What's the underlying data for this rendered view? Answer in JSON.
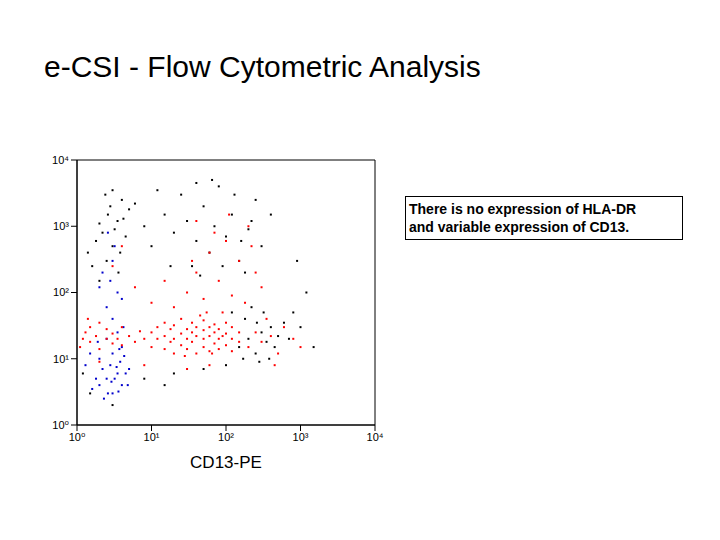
{
  "chart_data": {
    "type": "scatter",
    "title": "e-CSI - Flow Cytometric Analysis",
    "xlabel": "CD13-PE",
    "annotation": "There is no expression of HLA-DR and variable expression of CD13.",
    "log": true,
    "grid": false,
    "marker": "dot",
    "xlim": [
      1,
      10000
    ],
    "ylim": [
      1,
      10000
    ],
    "xticks": [
      {
        "value": 1,
        "label": "10⁰"
      },
      {
        "value": 10,
        "label": "10¹"
      },
      {
        "value": 100,
        "label": "10²"
      },
      {
        "value": 1000,
        "label": "10³"
      },
      {
        "value": 10000,
        "label": "10⁴"
      }
    ],
    "yticks": [
      {
        "value": 1,
        "label": "10⁰"
      },
      {
        "value": 10,
        "label": "10¹"
      },
      {
        "value": 100,
        "label": "10²"
      },
      {
        "value": 1000,
        "label": "10³"
      },
      {
        "value": 10000,
        "label": "10⁴"
      }
    ],
    "series": [
      {
        "color": "#000000",
        "points": [
          [
            2,
            150
          ],
          [
            2.5,
            300
          ],
          [
            3,
            500
          ],
          [
            2.2,
            800
          ],
          [
            3.5,
            1200
          ],
          [
            2.8,
            2000
          ],
          [
            4,
            2500
          ],
          [
            1.8,
            600
          ],
          [
            3.2,
            900
          ],
          [
            2.6,
            1500
          ],
          [
            4.5,
            700
          ],
          [
            1.6,
            250
          ],
          [
            3.8,
            400
          ],
          [
            2.4,
            3000
          ],
          [
            3,
            3500
          ],
          [
            5,
            1800
          ],
          [
            2,
            1100
          ],
          [
            3.6,
            200
          ],
          [
            4.2,
            1300
          ],
          [
            1.4,
            400
          ],
          [
            10,
            500
          ],
          [
            15,
            1500
          ],
          [
            20,
            800
          ],
          [
            25,
            3000
          ],
          [
            30,
            1200
          ],
          [
            40,
            600
          ],
          [
            50,
            2000
          ],
          [
            60,
            400
          ],
          [
            70,
            1000
          ],
          [
            80,
            4000
          ],
          [
            100,
            700
          ],
          [
            120,
            1500
          ],
          [
            150,
            300
          ],
          [
            200,
            900
          ],
          [
            250,
            2500
          ],
          [
            300,
            500
          ],
          [
            35,
            250
          ],
          [
            45,
            180
          ],
          [
            90,
            250
          ],
          [
            180,
            200
          ],
          [
            12,
            3500
          ],
          [
            18,
            250
          ],
          [
            65,
            5000
          ],
          [
            130,
            3000
          ],
          [
            220,
            1200
          ],
          [
            8,
            1000
          ],
          [
            6,
            2200
          ],
          [
            160,
            600
          ],
          [
            400,
            1500
          ],
          [
            40,
            4500
          ],
          [
            150,
            15
          ],
          [
            200,
            20
          ],
          [
            250,
            12
          ],
          [
            300,
            25
          ],
          [
            350,
            18
          ],
          [
            400,
            30
          ],
          [
            180,
            40
          ],
          [
            220,
            60
          ],
          [
            280,
            9
          ],
          [
            450,
            15
          ],
          [
            500,
            22
          ],
          [
            600,
            35
          ],
          [
            120,
            50
          ],
          [
            320,
            50
          ],
          [
            170,
            10
          ],
          [
            700,
            20
          ],
          [
            260,
            35
          ],
          [
            380,
            10
          ],
          [
            1.2,
            6
          ],
          [
            1.5,
            3
          ],
          [
            8,
            5
          ],
          [
            20,
            6
          ],
          [
            50,
            7
          ],
          [
            100,
            8
          ],
          [
            3,
            2
          ],
          [
            15,
            4
          ],
          [
            1000,
            30
          ],
          [
            1500,
            15
          ],
          [
            800,
            50
          ],
          [
            1200,
            100
          ],
          [
            900,
            300
          ]
        ]
      },
      {
        "color": "#0000cc",
        "points": [
          [
            2,
            4
          ],
          [
            2.5,
            5
          ],
          [
            3,
            3
          ],
          [
            3.5,
            6
          ],
          [
            4,
            4
          ],
          [
            2.2,
            7
          ],
          [
            2.8,
            8
          ],
          [
            3.2,
            5
          ],
          [
            3.8,
            9
          ],
          [
            4.5,
            6
          ],
          [
            2,
            10
          ],
          [
            3,
            12
          ],
          [
            4,
            15
          ],
          [
            2.5,
            20
          ],
          [
            3.5,
            25
          ],
          [
            1.8,
            5
          ],
          [
            1.6,
            3.5
          ],
          [
            4.8,
            4
          ],
          [
            2.6,
            3
          ],
          [
            3.4,
            7.5
          ],
          [
            3,
            40
          ],
          [
            2.5,
            60
          ],
          [
            3.5,
            100
          ],
          [
            2.8,
            150
          ],
          [
            2.2,
            200
          ],
          [
            3,
            300
          ],
          [
            4,
            80
          ],
          [
            2,
            120
          ],
          [
            3.2,
            500
          ],
          [
            2.6,
            800
          ],
          [
            1.5,
            12
          ],
          [
            4.2,
            30
          ],
          [
            1.3,
            8
          ],
          [
            5,
            7
          ],
          [
            2.3,
            2.5
          ],
          [
            3.6,
            3.2
          ],
          [
            2.9,
            4.5
          ],
          [
            4.3,
            11
          ],
          [
            1.9,
            18
          ],
          [
            3.7,
            14
          ]
        ]
      },
      {
        "color": "#ff0000",
        "points": [
          [
            10,
            15
          ],
          [
            10,
            25
          ],
          [
            12,
            20
          ],
          [
            12,
            30
          ],
          [
            15,
            14
          ],
          [
            15,
            22
          ],
          [
            15,
            35
          ],
          [
            18,
            18
          ],
          [
            18,
            28
          ],
          [
            20,
            12
          ],
          [
            20,
            20
          ],
          [
            20,
            32
          ],
          [
            25,
            16
          ],
          [
            25,
            24
          ],
          [
            25,
            40
          ],
          [
            30,
            14
          ],
          [
            30,
            20
          ],
          [
            30,
            28
          ],
          [
            35,
            18
          ],
          [
            35,
            25
          ],
          [
            35,
            35
          ],
          [
            40,
            12
          ],
          [
            40,
            22
          ],
          [
            40,
            30
          ],
          [
            50,
            15
          ],
          [
            50,
            20
          ],
          [
            50,
            27
          ],
          [
            50,
            38
          ],
          [
            60,
            13
          ],
          [
            60,
            22
          ],
          [
            60,
            30
          ],
          [
            70,
            17
          ],
          [
            70,
            25
          ],
          [
            70,
            33
          ],
          [
            80,
            14
          ],
          [
            80,
            20
          ],
          [
            80,
            28
          ],
          [
            100,
            16
          ],
          [
            100,
            24
          ],
          [
            100,
            35
          ],
          [
            120,
            13
          ],
          [
            120,
            20
          ],
          [
            120,
            30
          ],
          [
            150,
            18
          ],
          [
            150,
            25
          ],
          [
            90,
            22
          ],
          [
            45,
            45
          ],
          [
            55,
            50
          ],
          [
            65,
            12
          ],
          [
            28,
            11
          ],
          [
            1.1,
            15
          ],
          [
            1.2,
            20
          ],
          [
            1.3,
            25
          ],
          [
            1.5,
            18
          ],
          [
            1.5,
            30
          ],
          [
            1.8,
            22
          ],
          [
            2,
            14
          ],
          [
            2,
            35
          ],
          [
            2.5,
            20
          ],
          [
            2.5,
            28
          ],
          [
            3,
            17
          ],
          [
            3,
            24
          ],
          [
            3.5,
            20
          ],
          [
            4,
            16
          ],
          [
            4,
            30
          ],
          [
            5,
            22
          ],
          [
            6,
            18
          ],
          [
            7,
            26
          ],
          [
            8,
            20
          ],
          [
            1.4,
            40
          ],
          [
            20,
            60
          ],
          [
            30,
            100
          ],
          [
            40,
            200
          ],
          [
            50,
            80
          ],
          [
            60,
            400
          ],
          [
            80,
            150
          ],
          [
            100,
            600
          ],
          [
            120,
            90
          ],
          [
            150,
            300
          ],
          [
            200,
            1000
          ],
          [
            250,
            200
          ],
          [
            300,
            120
          ],
          [
            70,
            800
          ],
          [
            40,
            1200
          ],
          [
            180,
            70
          ],
          [
            90,
            50
          ],
          [
            35,
            300
          ],
          [
            110,
            1500
          ],
          [
            220,
            500
          ],
          [
            15,
            150
          ],
          [
            10,
            70
          ],
          [
            6,
            120
          ],
          [
            4,
            500
          ],
          [
            3,
            250
          ],
          [
            200,
            15
          ],
          [
            250,
            25
          ],
          [
            300,
            18
          ],
          [
            400,
            22
          ],
          [
            500,
            12
          ],
          [
            600,
            30
          ],
          [
            800,
            20
          ],
          [
            1000,
            15
          ],
          [
            350,
            40
          ],
          [
            450,
            8
          ],
          [
            8,
            8
          ],
          [
            30,
            7
          ],
          [
            60,
            8
          ],
          [
            2,
            9
          ]
        ]
      }
    ]
  }
}
